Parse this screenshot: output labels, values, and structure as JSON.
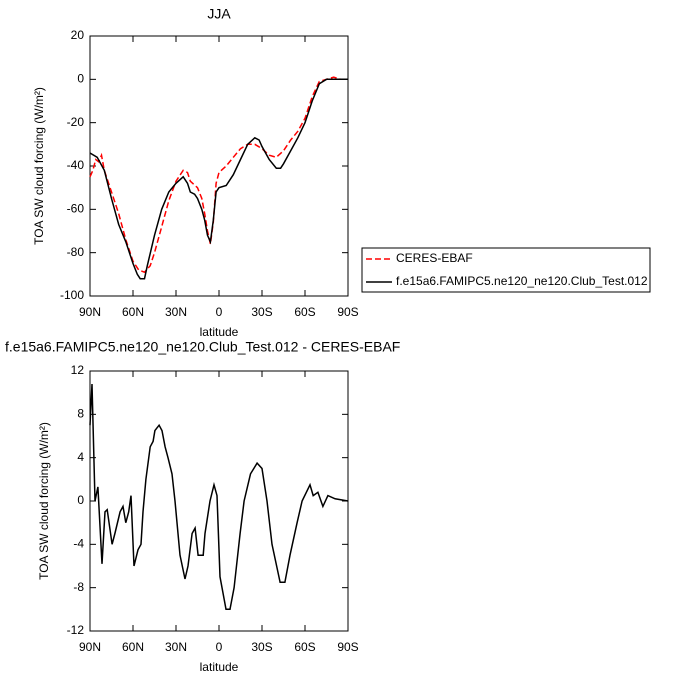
{
  "chart_data": [
    {
      "type": "line",
      "title": "JJA",
      "xlabel": "latitude",
      "ylabel": "TOA SW cloud forcing (W/m²)",
      "xlim": [
        90,
        -90
      ],
      "ylim": [
        -100,
        20
      ],
      "xticks": [
        {
          "value": 90,
          "label": "90N"
        },
        {
          "value": 60,
          "label": "60N"
        },
        {
          "value": 30,
          "label": "30N"
        },
        0,
        {
          "value": -30,
          "label": "30S"
        },
        {
          "value": -60,
          "label": "60S"
        },
        {
          "value": -90,
          "label": "90S"
        }
      ],
      "yticks": [
        20,
        0,
        -20,
        -40,
        -60,
        -80,
        -100
      ],
      "legend": true,
      "series": [
        {
          "name": "CERES-EBAF",
          "color": "#ff0000",
          "dashed": true,
          "x": [
            90,
            88,
            86,
            84,
            82,
            80,
            75,
            70,
            65,
            60,
            58,
            56,
            52,
            48,
            45,
            40,
            35,
            30,
            27,
            25,
            22,
            20,
            15,
            12,
            10,
            8,
            6,
            4,
            2,
            0,
            -5,
            -10,
            -15,
            -20,
            -25,
            -30,
            -35,
            -40,
            -45,
            -50,
            -55,
            -60,
            -65,
            -70,
            -75,
            -80,
            -85,
            -90
          ],
          "values": [
            -45,
            -42,
            -37,
            -38,
            -35,
            -42,
            -52,
            -62,
            -74,
            -84,
            -86,
            -88,
            -89,
            -86,
            -80,
            -68,
            -56,
            -47,
            -44,
            -42,
            -43,
            -47,
            -50,
            -55,
            -62,
            -70,
            -76,
            -66,
            -48,
            -43,
            -40,
            -36,
            -32,
            -30,
            -30,
            -32,
            -35,
            -36,
            -33,
            -28,
            -24,
            -18,
            -8,
            -1,
            0,
            1,
            0,
            0
          ]
        },
        {
          "name": "f.e15a6.FAMIPC5.ne120_ne120.Club_Test.012",
          "color": "#000000",
          "dashed": false,
          "x": [
            90,
            85,
            80,
            75,
            70,
            65,
            60,
            57,
            55,
            52,
            50,
            45,
            40,
            35,
            30,
            25,
            22,
            20,
            17,
            15,
            12,
            10,
            8,
            6,
            4,
            2,
            0,
            -5,
            -10,
            -15,
            -20,
            -25,
            -28,
            -30,
            -35,
            -40,
            -43,
            -45,
            -50,
            -55,
            -60,
            -65,
            -70,
            -75,
            -80,
            -90
          ],
          "values": [
            -34,
            -36,
            -42,
            -55,
            -67,
            -75,
            -85,
            -90,
            -92,
            -92,
            -86,
            -72,
            -60,
            -52,
            -48,
            -45,
            -48,
            -52,
            -53,
            -55,
            -60,
            -65,
            -72,
            -75,
            -65,
            -52,
            -50,
            -49,
            -44,
            -37,
            -30,
            -27,
            -28,
            -31,
            -37,
            -41,
            -41,
            -39,
            -33,
            -27,
            -20,
            -10,
            -2,
            0,
            0,
            0
          ]
        }
      ]
    },
    {
      "type": "line",
      "title": "f.e15a6.FAMIPC5.ne120_ne120.Club_Test.012 - CERES-EBAF",
      "xlabel": "latitude",
      "ylabel": "TOA SW cloud forcing (W/m²)",
      "xlim": [
        90,
        -90
      ],
      "ylim": [
        -12,
        12
      ],
      "xticks": [
        {
          "value": 90,
          "label": "90N"
        },
        {
          "value": 60,
          "label": "60N"
        },
        {
          "value": 30,
          "label": "30N"
        },
        0,
        {
          "value": -30,
          "label": "30S"
        },
        {
          "value": -60,
          "label": "60S"
        },
        {
          "value": -90,
          "label": "90S"
        }
      ],
      "yticks": [
        12,
        8,
        4,
        0,
        -4,
        -8,
        -12
      ],
      "color": "#000000",
      "x": [
        90,
        88.6,
        86.5,
        84.5,
        81.6,
        79.5,
        78,
        74.6,
        72.6,
        69,
        67,
        65,
        63,
        61.4,
        59.3,
        56.5,
        54.4,
        53,
        51,
        48,
        46,
        44.7,
        41.8,
        39.8,
        37.6,
        35.6,
        32.8,
        30.7,
        27.2,
        23.7,
        21.6,
        18.8,
        16.7,
        14.6,
        11,
        9.8,
        6.3,
        3.5,
        1.4,
        -0.7,
        -4.9,
        -7.7,
        -10.5,
        -14.7,
        -17.5,
        -22,
        -26.6,
        -30,
        -33.5,
        -37,
        -42.6,
        -46,
        -49.5,
        -54.5,
        -58,
        -63.5,
        -65.7,
        -69,
        -72.5,
        -76,
        -81,
        -90
      ],
      "values": [
        7,
        10.8,
        0,
        1.3,
        -5.8,
        -1,
        -0.8,
        -4,
        -3,
        -1,
        -0.5,
        -2,
        -1,
        0.5,
        -6,
        -4.5,
        -4,
        -1,
        2,
        5,
        5.5,
        6.5,
        7,
        6.5,
        5,
        4,
        2.5,
        0,
        -5,
        -7.2,
        -6,
        -3,
        -2.5,
        -5,
        -5,
        -3,
        0,
        1.5,
        0.5,
        -7,
        -10,
        -10,
        -8,
        -3,
        0,
        2.5,
        3.5,
        3,
        0,
        -4,
        -7.5,
        -7.5,
        -5,
        -2,
        0,
        1.5,
        0.5,
        0.8,
        -0.5,
        0.5,
        0.2,
        0
      ]
    }
  ]
}
